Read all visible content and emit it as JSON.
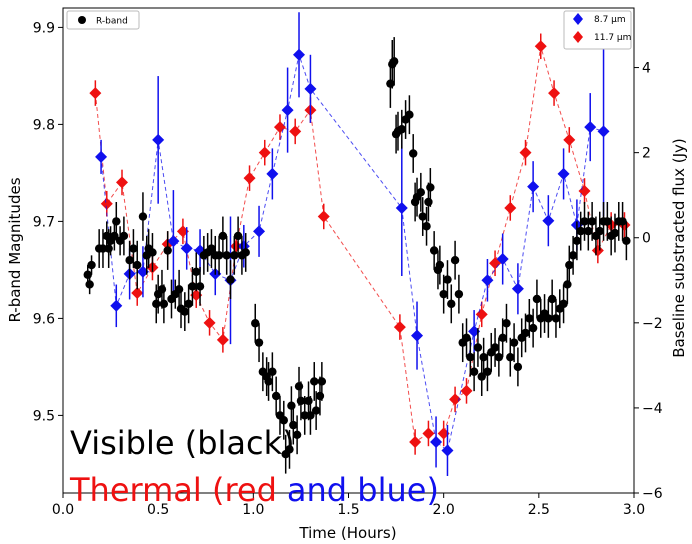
{
  "chart_data": {
    "type": "scatter",
    "xlabel": "Time (Hours)",
    "ylabel_left": "R-band Magnitudes",
    "ylabel_right": "Baseline substracted flux (Jy)",
    "xlim": [
      0.0,
      3.0
    ],
    "ylim_left": [
      9.92,
      9.42
    ],
    "ylim_right": [
      -6,
      5.4
    ],
    "x_ticks": [
      "0.0",
      "0.5",
      "1.0",
      "1.5",
      "2.0",
      "2.5",
      "3.0"
    ],
    "y_ticks_left": [
      "9.5",
      "9.6",
      "9.7",
      "9.8",
      "9.9"
    ],
    "y_ticks_right": [
      "4",
      "2",
      "0",
      "−2",
      "−4",
      "−6"
    ],
    "y_tick_values_left": [
      9.5,
      9.6,
      9.7,
      9.8,
      9.9
    ],
    "y_tick_values_right": [
      4,
      2,
      0,
      -2,
      -4,
      -6
    ],
    "x_tick_values": [
      0,
      0.5,
      1.0,
      1.5,
      2.0,
      2.5,
      3.0
    ],
    "annotations": {
      "line1": "Visible (black)",
      "line2_red": "Thermal (red",
      "line2_blue": "and blue)"
    },
    "legend_left": {
      "placement": "top-left",
      "entries": [
        "R-band"
      ]
    },
    "legend_right": {
      "placement": "top-right",
      "entries": [
        "8.7 μm",
        "11.7 μm"
      ]
    },
    "colors": {
      "rband": "#000000",
      "band87": "#1010ee",
      "band117": "#ee1111"
    },
    "series": [
      {
        "name": "R-band",
        "axis": "left",
        "marker": "circle",
        "points": [
          [
            0.13,
            9.645,
            0.01
          ],
          [
            0.14,
            9.635,
            0.01
          ],
          [
            0.15,
            9.655,
            0.01
          ],
          [
            0.19,
            9.672,
            0.02
          ],
          [
            0.21,
            9.672,
            0.02
          ],
          [
            0.23,
            9.685,
            0.015
          ],
          [
            0.24,
            9.672,
            0.02
          ],
          [
            0.25,
            9.68,
            0.015
          ],
          [
            0.27,
            9.685,
            0.015
          ],
          [
            0.28,
            9.7,
            0.02
          ],
          [
            0.3,
            9.68,
            0.015
          ],
          [
            0.32,
            9.685,
            0.02
          ],
          [
            0.35,
            9.66,
            0.02
          ],
          [
            0.37,
            9.672,
            0.02
          ],
          [
            0.39,
            9.655,
            0.025
          ],
          [
            0.42,
            9.705,
            0.025
          ],
          [
            0.44,
            9.665,
            0.02
          ],
          [
            0.45,
            9.672,
            0.02
          ],
          [
            0.47,
            9.668,
            0.02
          ],
          [
            0.49,
            9.615,
            0.02
          ],
          [
            0.5,
            9.625,
            0.02
          ],
          [
            0.52,
            9.63,
            0.02
          ],
          [
            0.53,
            9.615,
            0.02
          ],
          [
            0.55,
            9.67,
            0.02
          ],
          [
            0.57,
            9.62,
            0.02
          ],
          [
            0.59,
            9.625,
            0.015
          ],
          [
            0.61,
            9.63,
            0.02
          ],
          [
            0.62,
            9.61,
            0.02
          ],
          [
            0.64,
            9.607,
            0.02
          ],
          [
            0.66,
            9.615,
            0.02
          ],
          [
            0.68,
            9.633,
            0.02
          ],
          [
            0.7,
            9.648,
            0.02
          ],
          [
            0.72,
            9.633,
            0.02
          ],
          [
            0.74,
            9.665,
            0.02
          ],
          [
            0.76,
            9.668,
            0.02
          ],
          [
            0.78,
            9.672,
            0.02
          ],
          [
            0.8,
            9.665,
            0.02
          ],
          [
            0.82,
            9.665,
            0.02
          ],
          [
            0.84,
            9.685,
            0.02
          ],
          [
            0.86,
            9.665,
            0.02
          ],
          [
            0.88,
            9.64,
            0.02
          ],
          [
            0.9,
            9.665,
            0.02
          ],
          [
            0.92,
            9.685,
            0.02
          ],
          [
            0.94,
            9.665,
            0.02
          ],
          [
            0.96,
            9.668,
            0.02
          ],
          [
            1.01,
            9.595,
            0.02
          ],
          [
            1.03,
            9.575,
            0.02
          ],
          [
            1.05,
            9.545,
            0.02
          ],
          [
            1.07,
            9.54,
            0.02
          ],
          [
            1.08,
            9.535,
            0.02
          ],
          [
            1.1,
            9.545,
            0.02
          ],
          [
            1.12,
            9.52,
            0.02
          ],
          [
            1.14,
            9.5,
            0.02
          ],
          [
            1.16,
            9.495,
            0.02
          ],
          [
            1.17,
            9.46,
            0.02
          ],
          [
            1.19,
            9.465,
            0.02
          ],
          [
            1.2,
            9.51,
            0.02
          ],
          [
            1.21,
            9.49,
            0.02
          ],
          [
            1.23,
            9.48,
            0.02
          ],
          [
            1.24,
            9.53,
            0.02
          ],
          [
            1.25,
            9.515,
            0.02
          ],
          [
            1.27,
            9.5,
            0.02
          ],
          [
            1.29,
            9.515,
            0.02
          ],
          [
            1.3,
            9.5,
            0.02
          ],
          [
            1.32,
            9.535,
            0.02
          ],
          [
            1.33,
            9.505,
            0.02
          ],
          [
            1.35,
            9.52,
            0.02
          ],
          [
            1.36,
            9.535,
            0.02
          ],
          [
            1.72,
            9.842,
            0.025
          ],
          [
            1.73,
            9.862,
            0.025
          ],
          [
            1.74,
            9.865,
            0.025
          ],
          [
            1.75,
            9.79,
            0.02
          ],
          [
            1.76,
            9.793,
            0.02
          ],
          [
            1.78,
            9.795,
            0.02
          ],
          [
            1.8,
            9.805,
            0.02
          ],
          [
            1.82,
            9.81,
            0.02
          ],
          [
            1.84,
            9.77,
            0.02
          ],
          [
            1.85,
            9.72,
            0.02
          ],
          [
            1.86,
            9.725,
            0.02
          ],
          [
            1.88,
            9.73,
            0.02
          ],
          [
            1.89,
            9.705,
            0.02
          ],
          [
            1.91,
            9.695,
            0.02
          ],
          [
            1.92,
            9.72,
            0.02
          ],
          [
            1.93,
            9.735,
            0.02
          ],
          [
            1.95,
            9.67,
            0.02
          ],
          [
            1.97,
            9.65,
            0.02
          ],
          [
            1.98,
            9.655,
            0.02
          ],
          [
            2.0,
            9.625,
            0.02
          ],
          [
            2.02,
            9.64,
            0.02
          ],
          [
            2.04,
            9.615,
            0.02
          ],
          [
            2.06,
            9.66,
            0.02
          ],
          [
            2.08,
            9.625,
            0.02
          ],
          [
            2.1,
            9.575,
            0.02
          ],
          [
            2.12,
            9.58,
            0.02
          ],
          [
            2.14,
            9.56,
            0.02
          ],
          [
            2.16,
            9.545,
            0.02
          ],
          [
            2.18,
            9.57,
            0.02
          ],
          [
            2.2,
            9.54,
            0.02
          ],
          [
            2.21,
            9.56,
            0.02
          ],
          [
            2.23,
            9.545,
            0.02
          ],
          [
            2.25,
            9.565,
            0.02
          ],
          [
            2.27,
            9.57,
            0.02
          ],
          [
            2.29,
            9.56,
            0.02
          ],
          [
            2.31,
            9.58,
            0.02
          ],
          [
            2.33,
            9.595,
            0.02
          ],
          [
            2.35,
            9.56,
            0.02
          ],
          [
            2.37,
            9.575,
            0.02
          ],
          [
            2.39,
            9.55,
            0.02
          ],
          [
            2.41,
            9.58,
            0.02
          ],
          [
            2.43,
            9.585,
            0.02
          ],
          [
            2.45,
            9.6,
            0.02
          ],
          [
            2.47,
            9.59,
            0.02
          ],
          [
            2.49,
            9.62,
            0.02
          ],
          [
            2.51,
            9.6,
            0.02
          ],
          [
            2.53,
            9.605,
            0.02
          ],
          [
            2.55,
            9.6,
            0.02
          ],
          [
            2.57,
            9.62,
            0.02
          ],
          [
            2.59,
            9.6,
            0.02
          ],
          [
            2.61,
            9.61,
            0.02
          ],
          [
            2.63,
            9.615,
            0.02
          ],
          [
            2.65,
            9.635,
            0.02
          ],
          [
            2.66,
            9.655,
            0.02
          ],
          [
            2.68,
            9.665,
            0.02
          ],
          [
            2.7,
            9.68,
            0.02
          ],
          [
            2.72,
            9.69,
            0.02
          ],
          [
            2.74,
            9.7,
            0.02
          ],
          [
            2.76,
            9.69,
            0.02
          ],
          [
            2.78,
            9.7,
            0.02
          ],
          [
            2.8,
            9.685,
            0.02
          ],
          [
            2.82,
            9.69,
            0.02
          ],
          [
            2.84,
            9.7,
            0.02
          ],
          [
            2.86,
            9.7,
            0.02
          ],
          [
            2.88,
            9.685,
            0.02
          ],
          [
            2.9,
            9.688,
            0.02
          ],
          [
            2.92,
            9.7,
            0.02
          ],
          [
            2.94,
            9.7,
            0.02
          ],
          [
            2.96,
            9.68,
            0.02
          ]
        ]
      },
      {
        "name": "8.7 μm",
        "axis": "right",
        "marker": "diamond",
        "dashed": true,
        "points": [
          [
            0.2,
            1.9,
            0.4
          ],
          [
            0.28,
            -1.6,
            0.5
          ],
          [
            0.35,
            -0.85,
            0.6
          ],
          [
            0.42,
            -0.8,
            0.6
          ],
          [
            0.5,
            2.3,
            1.5
          ],
          [
            0.58,
            -0.08,
            1.2
          ],
          [
            0.65,
            -0.25,
            0.5
          ],
          [
            0.72,
            -0.3,
            0.5
          ],
          [
            0.8,
            -0.85,
            0.5
          ],
          [
            0.88,
            -1.0,
            1.5
          ],
          [
            0.95,
            -0.2,
            0.5
          ],
          [
            1.03,
            0.15,
            0.6
          ],
          [
            1.1,
            1.5,
            0.6
          ],
          [
            1.18,
            3.0,
            1.0
          ],
          [
            1.24,
            4.3,
            1.0
          ],
          [
            1.3,
            3.5,
            0.8
          ],
          [
            1.78,
            0.7,
            1.6
          ],
          [
            1.86,
            -2.3,
            0.8
          ],
          [
            1.96,
            -4.8,
            0.6
          ],
          [
            2.02,
            -5.0,
            0.6
          ],
          [
            2.16,
            -2.2,
            0.5
          ],
          [
            2.23,
            -1.0,
            0.5
          ],
          [
            2.31,
            -0.5,
            0.6
          ],
          [
            2.39,
            -1.2,
            0.6
          ],
          [
            2.47,
            1.2,
            0.6
          ],
          [
            2.55,
            0.4,
            0.6
          ],
          [
            2.63,
            1.5,
            0.6
          ],
          [
            2.7,
            0.3,
            0.6
          ],
          [
            2.77,
            2.6,
            0.8
          ],
          [
            2.84,
            2.5,
            2.0
          ]
        ]
      },
      {
        "name": "11.7 μm",
        "axis": "right",
        "marker": "diamond",
        "dashed": true,
        "points": [
          [
            0.17,
            3.4,
            0.3
          ],
          [
            0.23,
            0.8,
            0.3
          ],
          [
            0.31,
            1.3,
            0.3
          ],
          [
            0.39,
            -1.3,
            0.3
          ],
          [
            0.47,
            -0.7,
            0.3
          ],
          [
            0.55,
            -0.15,
            0.3
          ],
          [
            0.63,
            0.15,
            0.3
          ],
          [
            0.7,
            -1.35,
            0.3
          ],
          [
            0.77,
            -2.0,
            0.3
          ],
          [
            0.84,
            -2.4,
            0.3
          ],
          [
            0.91,
            -0.2,
            0.3
          ],
          [
            0.98,
            1.4,
            0.3
          ],
          [
            1.06,
            2.0,
            0.3
          ],
          [
            1.14,
            2.6,
            0.3
          ],
          [
            1.22,
            2.5,
            0.3
          ],
          [
            1.3,
            3.0,
            0.3
          ],
          [
            1.37,
            0.5,
            0.3
          ],
          [
            1.77,
            -2.1,
            0.3
          ],
          [
            1.85,
            -4.8,
            0.3
          ],
          [
            1.92,
            -4.6,
            0.3
          ],
          [
            2.0,
            -4.6,
            0.3
          ],
          [
            2.06,
            -3.8,
            0.3
          ],
          [
            2.12,
            -3.6,
            0.3
          ],
          [
            2.2,
            -1.8,
            0.3
          ],
          [
            2.27,
            -0.6,
            0.3
          ],
          [
            2.35,
            0.7,
            0.3
          ],
          [
            2.43,
            2.0,
            0.3
          ],
          [
            2.51,
            4.5,
            0.3
          ],
          [
            2.58,
            3.4,
            0.3
          ],
          [
            2.66,
            2.3,
            0.3
          ],
          [
            2.74,
            1.1,
            0.3
          ],
          [
            2.81,
            -0.3,
            0.3
          ],
          [
            2.88,
            0.3,
            0.3
          ],
          [
            2.95,
            0.3,
            0.3
          ]
        ]
      }
    ]
  }
}
